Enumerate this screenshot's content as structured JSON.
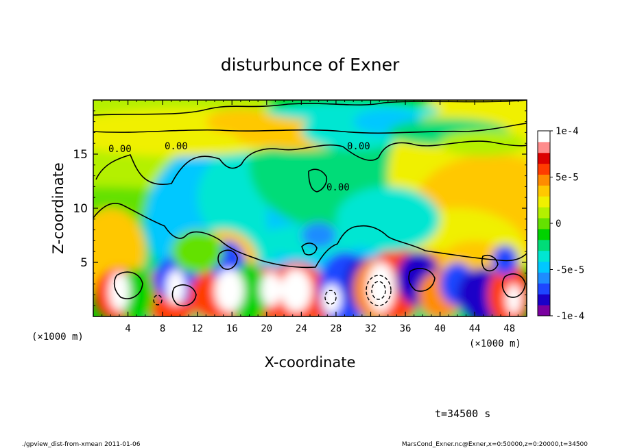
{
  "chart_data": {
    "type": "heatmap",
    "title": "disturbunce of Exner",
    "xlabel": "X-coordinate",
    "ylabel": "Z-coordinate",
    "x_unit": "(×1000 m)",
    "y_unit": "(×1000 m)",
    "xlim": [
      0,
      50
    ],
    "ylim": [
      0,
      20
    ],
    "x_ticks": [
      4,
      8,
      12,
      16,
      20,
      24,
      28,
      32,
      36,
      40,
      44,
      48
    ],
    "y_ticks": [
      5,
      10,
      15
    ],
    "colorbar": {
      "range": [
        -0.0001,
        0.0001
      ],
      "tick_values": [
        0.0001,
        5e-05,
        0,
        -5e-05,
        -0.0001
      ],
      "tick_labels": [
        "1e-4",
        "5e-5",
        "0",
        "-5e-5",
        "-1e-4"
      ],
      "colors": [
        "#7a00a0",
        "#1a00c8",
        "#1e46ff",
        "#1e8cff",
        "#00c8ff",
        "#00e6d2",
        "#00dc78",
        "#00d200",
        "#64e100",
        "#b4f000",
        "#f0f000",
        "#ffc800",
        "#ff8c00",
        "#ff3c00",
        "#dc0000",
        "#ff8c8c",
        "#ffffff"
      ]
    },
    "contour_labels": [
      "0.00",
      "0.00",
      "0.00",
      "0.00"
    ],
    "time_label": "t=34500 s",
    "footer_left": "./gpview_dist-from-xmean   2011-01-06",
    "footer_right": "MarsCond_Exner.nc@Exner,x=0:50000,z=0:20000,t=34500",
    "grid": false
  }
}
